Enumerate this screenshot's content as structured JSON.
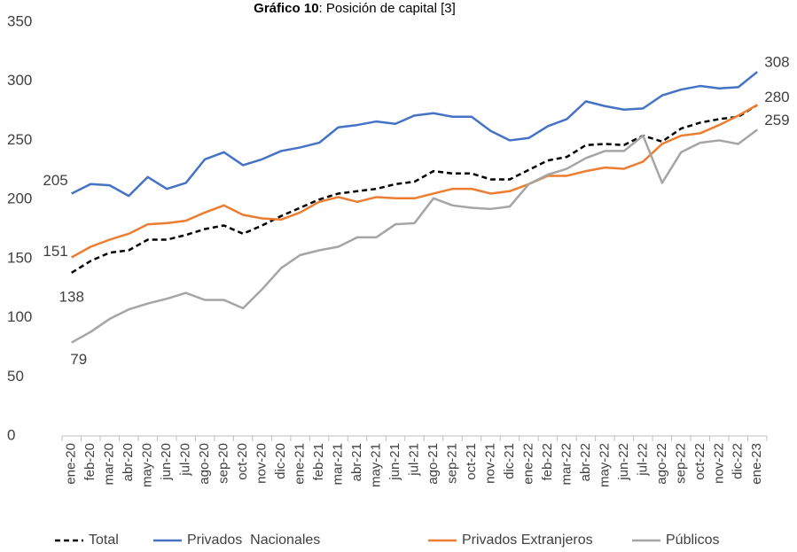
{
  "chart_data": {
    "type": "line",
    "title": {
      "bold": "Gráfico 10",
      "text": ": Posición de capital [3]"
    },
    "categories": [
      "ene-20",
      "feb-20",
      "mar-20",
      "abr-20",
      "may-20",
      "jun-20",
      "jul-20",
      "ago-20",
      "sep-20",
      "oct-20",
      "nov-20",
      "dic-20",
      "ene-21",
      "feb-21",
      "mar-21",
      "abr-21",
      "may-21",
      "jun-21",
      "jul-21",
      "ago-21",
      "sep-21",
      "oct-21",
      "nov-21",
      "dic-21",
      "ene-22",
      "feb-22",
      "mar-22",
      "abr-22",
      "may-22",
      "jun-22",
      "jul-22",
      "ago-22",
      "sep-22",
      "oct-22",
      "nov-22",
      "dic-22",
      "ene-23"
    ],
    "series": [
      {
        "name": "Total",
        "color": "#000000",
        "dash": true,
        "values": [
          138,
          148,
          155,
          157,
          166,
          166,
          170,
          175,
          178,
          171,
          178,
          186,
          193,
          200,
          205,
          207,
          209,
          213,
          215,
          224,
          222,
          222,
          217,
          217,
          225,
          233,
          236,
          246,
          247,
          246,
          254,
          249,
          260,
          265,
          268,
          270,
          280
        ],
        "value_labels": [
          "138",
          null,
          null,
          null,
          null,
          null,
          null,
          null,
          null,
          null,
          null,
          null,
          null,
          null,
          null,
          null,
          null,
          null,
          null,
          null,
          null,
          null,
          null,
          null,
          null,
          null,
          null,
          null,
          null,
          null,
          null,
          null,
          null,
          null,
          null,
          null,
          null
        ]
      },
      {
        "name": "Privados  Nacionales",
        "color": "#4472c4",
        "dash": false,
        "values": [
          205,
          213,
          212,
          203,
          219,
          209,
          214,
          234,
          240,
          229,
          234,
          241,
          244,
          248,
          261,
          263,
          266,
          264,
          271,
          273,
          270,
          270,
          258,
          250,
          252,
          262,
          268,
          283,
          279,
          276,
          277,
          288,
          293,
          296,
          294,
          295,
          308
        ],
        "value_labels": [
          "205",
          null,
          null,
          null,
          null,
          null,
          null,
          null,
          null,
          null,
          null,
          null,
          null,
          null,
          null,
          null,
          null,
          null,
          null,
          null,
          null,
          null,
          null,
          null,
          null,
          null,
          null,
          null,
          null,
          null,
          null,
          null,
          null,
          null,
          null,
          null,
          "308"
        ]
      },
      {
        "name": "Privados Extranjeros",
        "color": "#ed7d31",
        "dash": false,
        "values": [
          151,
          160,
          166,
          171,
          179,
          180,
          182,
          189,
          195,
          187,
          184,
          183,
          189,
          198,
          202,
          198,
          202,
          201,
          201,
          205,
          209,
          209,
          205,
          207,
          213,
          220,
          220,
          224,
          227,
          226,
          232,
          247,
          254,
          256,
          263,
          271,
          280
        ],
        "value_labels": [
          "151",
          null,
          null,
          null,
          null,
          null,
          null,
          null,
          null,
          null,
          null,
          null,
          null,
          null,
          null,
          null,
          null,
          null,
          null,
          null,
          null,
          null,
          null,
          null,
          null,
          null,
          null,
          null,
          null,
          null,
          null,
          null,
          null,
          null,
          null,
          null,
          "280"
        ]
      },
      {
        "name": "Públicos",
        "color": "#a5a5a5",
        "dash": false,
        "values": [
          79,
          88,
          99,
          107,
          112,
          116,
          121,
          115,
          115,
          108,
          124,
          142,
          153,
          157,
          160,
          168,
          168,
          179,
          180,
          201,
          195,
          193,
          192,
          194,
          213,
          221,
          226,
          235,
          241,
          241,
          254,
          214,
          240,
          248,
          250,
          247,
          259
        ],
        "value_labels": [
          "79",
          null,
          null,
          null,
          null,
          null,
          null,
          null,
          null,
          null,
          null,
          null,
          null,
          null,
          null,
          null,
          null,
          null,
          null,
          null,
          null,
          null,
          null,
          null,
          null,
          null,
          null,
          null,
          null,
          null,
          null,
          null,
          null,
          null,
          null,
          null,
          "259"
        ]
      }
    ],
    "ylim": [
      0,
      350
    ],
    "yticks": [
      0,
      50,
      100,
      150,
      200,
      250,
      300,
      350
    ],
    "grid": false,
    "legend": "bottom"
  }
}
